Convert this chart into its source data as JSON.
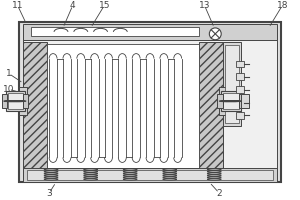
{
  "bg_color": "#ffffff",
  "lc": "#444444",
  "gray1": "#d8d8d8",
  "gray2": "#e8e8e8",
  "gray3": "#c0c0c0",
  "figsize": [
    3.0,
    2.0
  ],
  "dpi": 100,
  "labels": [
    "11",
    "4",
    "15",
    "13",
    "18",
    "1",
    "10",
    "3",
    "2"
  ]
}
